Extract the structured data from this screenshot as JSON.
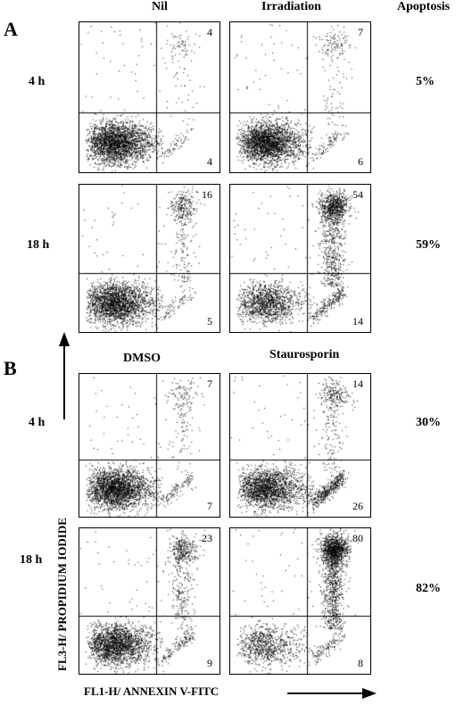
{
  "panel_a": {
    "letter": "A",
    "columns": [
      "Nil",
      "Irradiation"
    ],
    "apoptosis_header": "Apoptosis",
    "rows": [
      {
        "label": "4 h",
        "apoptosis": "5%",
        "plots": [
          {
            "ur": "4",
            "lr": "4"
          },
          {
            "ur": "7",
            "lr": "6"
          }
        ]
      },
      {
        "label": "18 h",
        "apoptosis": "59%",
        "plots": [
          {
            "ur": "16",
            "lr": "5"
          },
          {
            "ur": "54",
            "lr": "14"
          }
        ]
      }
    ]
  },
  "panel_b": {
    "letter": "B",
    "columns": [
      "DMSO",
      "Staurosporin"
    ],
    "rows": [
      {
        "label": "4 h",
        "apoptosis": "30%",
        "plots": [
          {
            "ur": "7",
            "lr": "7"
          },
          {
            "ur": "14",
            "lr": "26"
          }
        ]
      },
      {
        "label": "18 h",
        "apoptosis": "82%",
        "plots": [
          {
            "ur": "23",
            "lr": "9"
          },
          {
            "ur": "80",
            "lr": "8"
          }
        ]
      }
    ]
  },
  "axes": {
    "y_label": "FL3-H/ PROPIDIUM IODIDE",
    "x_label": "FL1-H/ ANNEXIN V-FITC"
  }
}
